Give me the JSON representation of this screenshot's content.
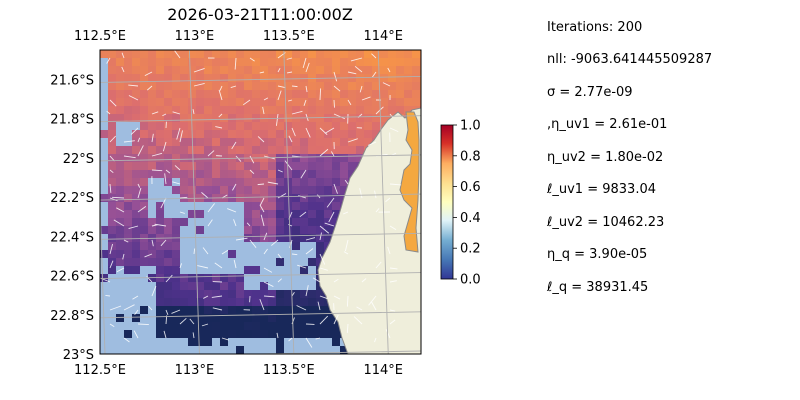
{
  "chart_data": {
    "type": "heatmap",
    "title": "2026-03-21T11:00:00Z",
    "xlabel": "",
    "ylabel": "",
    "xlim": [
      112.5,
      114.2
    ],
    "ylim": [
      -23.0,
      -21.45
    ],
    "x_ticks": [
      {
        "value": 112.5,
        "label": "112.5°E"
      },
      {
        "value": 113.0,
        "label": "113°E"
      },
      {
        "value": 113.5,
        "label": "113.5°E"
      },
      {
        "value": 114.0,
        "label": "114°E"
      }
    ],
    "y_ticks": [
      {
        "value": -21.6,
        "label": "21.6°S"
      },
      {
        "value": -21.8,
        "label": "21.8°S"
      },
      {
        "value": -22.0,
        "label": "22°S"
      },
      {
        "value": -22.2,
        "label": "22.2°S"
      },
      {
        "value": -22.4,
        "label": "22.4°S"
      },
      {
        "value": -22.6,
        "label": "22.6°S"
      },
      {
        "value": -22.8,
        "label": "22.8°S"
      },
      {
        "value": -23.0,
        "label": "23°S"
      }
    ],
    "grid": true,
    "colormap": "RdYlBu_r",
    "colorbar": {
      "range": [
        0,
        1
      ],
      "ticks": [
        "0.0",
        "0.2",
        "0.4",
        "0.6",
        "0.8",
        "1.0"
      ]
    },
    "colors": {
      "water_mask": "#9fbde0",
      "land": "#efeedb",
      "coast": "#8a8a8a",
      "gridline": "#b0b0b0",
      "arrow": "#ffffff"
    }
  },
  "stats": [
    "Iterations: 200",
    "nll: -9063.641445509287",
    "σ = 2.77e-09",
    ",η_uv1 = 2.61e-01",
    "η_uv2 = 1.80e-02",
    "ℓ_uv1 = 9833.04",
    "ℓ_uv2 = 10462.23",
    "η_q = 3.90e-05",
    "ℓ_q = 38931.45"
  ]
}
